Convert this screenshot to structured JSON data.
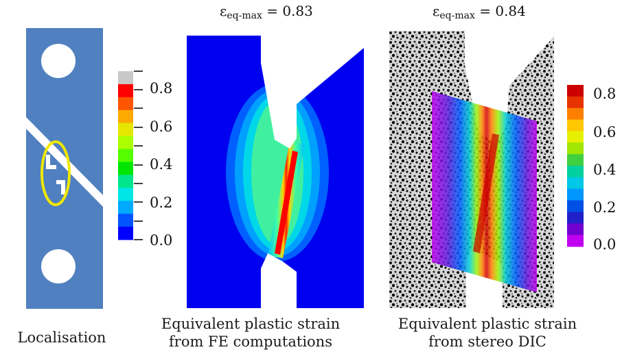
{
  "panels": {
    "localisation": {
      "caption": "Localisation"
    },
    "fe": {
      "title_symbol": "ε",
      "title_sub": "eq-max",
      "title_value": " = 0.83",
      "caption_line1": "Equivalent plastic strain",
      "caption_line2": "from FE computations"
    },
    "dic": {
      "title_symbol": "ε",
      "title_sub": "eq-max",
      "title_value": " = 0.84",
      "caption_line1": "Equivalent plastic strain",
      "caption_line2": "from stereo DIC"
    }
  },
  "fe_colorbar": {
    "ticks": [
      "0.8",
      "0.6",
      "0.4",
      "0.2",
      "0.0"
    ],
    "colors": [
      "#c8c8c8",
      "#ff0000",
      "#ff5500",
      "#ffaa00",
      "#e6e600",
      "#aaff00",
      "#55ff00",
      "#00e600",
      "#00e68c",
      "#00e6e6",
      "#00aaff",
      "#0055ff",
      "#0000ff"
    ]
  },
  "dic_colorbar": {
    "ticks": [
      "0.8",
      "0.6",
      "0.4",
      "0.2",
      "0.0"
    ],
    "colors": [
      "#cc0000",
      "#e63300",
      "#ff8000",
      "#ffc800",
      "#e6f000",
      "#a0e600",
      "#40d040",
      "#00d0a0",
      "#00c8e6",
      "#0096ff",
      "#0050e6",
      "#2020c8",
      "#7000d0",
      "#c000f0"
    ]
  },
  "colors": {
    "specimen_blue": "#5080c0",
    "highlight_yellow": "#f0e800",
    "fe_background": "#0000f0"
  }
}
